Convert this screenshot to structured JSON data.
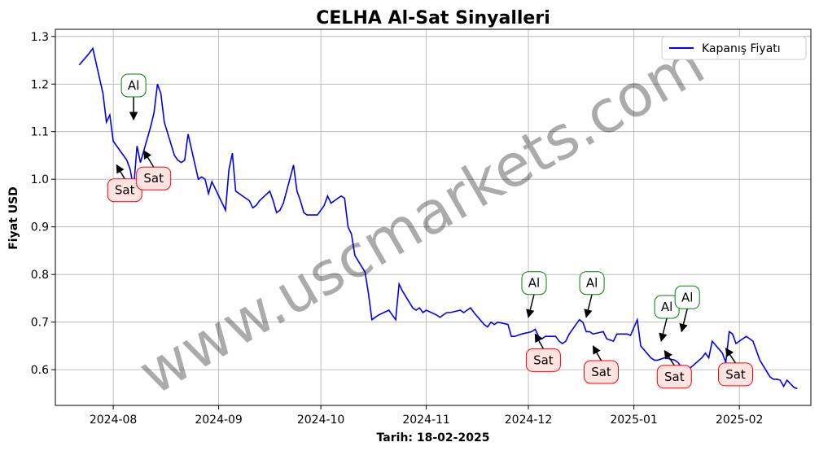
{
  "chart_data": {
    "type": "line",
    "title": "CELHA Al-Sat Sinyalleri",
    "xlabel": "Tarih: 18-02-2025",
    "ylabel": "Fiyat USD",
    "watermark": "www.uscmarkets.com",
    "grid": true,
    "legend_position": "top-right",
    "xlim": [
      "2024-07-15",
      "2025-02-22"
    ],
    "ylim": [
      0.525,
      1.315
    ],
    "x_ticks": [
      {
        "date": "2024-08-01",
        "label": "2024-08"
      },
      {
        "date": "2024-09-01",
        "label": "2024-09"
      },
      {
        "date": "2024-10-01",
        "label": "2024-10"
      },
      {
        "date": "2024-11-01",
        "label": "2024-11"
      },
      {
        "date": "2024-12-01",
        "label": "2024-12"
      },
      {
        "date": "2025-01-01",
        "label": "2025-01"
      },
      {
        "date": "2025-02-01",
        "label": "2025-02"
      }
    ],
    "y_ticks": [
      0.6,
      0.7,
      0.8,
      0.9,
      1.0,
      1.1,
      1.2,
      1.3
    ],
    "y_tick_labels": [
      "0.6",
      "0.7",
      "0.8",
      "0.9",
      "1.0",
      "1.1",
      "1.2",
      "1.3"
    ],
    "series": [
      {
        "name": "Kapanış Fiyatı",
        "color": "#0000ee",
        "points": [
          [
            "2024-07-22",
            1.24
          ],
          [
            "2024-07-25",
            1.265
          ],
          [
            "2024-07-26",
            1.275
          ],
          [
            "2024-07-29",
            1.18
          ],
          [
            "2024-07-30",
            1.12
          ],
          [
            "2024-07-31",
            1.135
          ],
          [
            "2024-08-01",
            1.08
          ],
          [
            "2024-08-05",
            1.04
          ],
          [
            "2024-08-06",
            1.02
          ],
          [
            "2024-08-07",
            0.98
          ],
          [
            "2024-08-08",
            1.07
          ],
          [
            "2024-08-09",
            1.035
          ],
          [
            "2024-08-12",
            1.11
          ],
          [
            "2024-08-13",
            1.14
          ],
          [
            "2024-08-14",
            1.2
          ],
          [
            "2024-08-15",
            1.18
          ],
          [
            "2024-08-16",
            1.12
          ],
          [
            "2024-08-19",
            1.05
          ],
          [
            "2024-08-20",
            1.04
          ],
          [
            "2024-08-21",
            1.035
          ],
          [
            "2024-08-22",
            1.04
          ],
          [
            "2024-08-23",
            1.095
          ],
          [
            "2024-08-26",
            1.0
          ],
          [
            "2024-08-27",
            1.005
          ],
          [
            "2024-08-28",
            1.0
          ],
          [
            "2024-08-29",
            0.97
          ],
          [
            "2024-08-30",
            0.995
          ],
          [
            "2024-09-03",
            0.935
          ],
          [
            "2024-09-04",
            1.02
          ],
          [
            "2024-09-05",
            1.055
          ],
          [
            "2024-09-06",
            0.975
          ],
          [
            "2024-09-09",
            0.96
          ],
          [
            "2024-09-10",
            0.955
          ],
          [
            "2024-09-11",
            0.94
          ],
          [
            "2024-09-12",
            0.945
          ],
          [
            "2024-09-13",
            0.955
          ],
          [
            "2024-09-16",
            0.975
          ],
          [
            "2024-09-17",
            0.955
          ],
          [
            "2024-09-18",
            0.93
          ],
          [
            "2024-09-19",
            0.935
          ],
          [
            "2024-09-20",
            0.95
          ],
          [
            "2024-09-23",
            1.03
          ],
          [
            "2024-09-24",
            0.975
          ],
          [
            "2024-09-25",
            0.955
          ],
          [
            "2024-09-26",
            0.93
          ],
          [
            "2024-09-27",
            0.925
          ],
          [
            "2024-09-30",
            0.925
          ],
          [
            "2024-10-01",
            0.935
          ],
          [
            "2024-10-02",
            0.945
          ],
          [
            "2024-10-03",
            0.965
          ],
          [
            "2024-10-04",
            0.95
          ],
          [
            "2024-10-07",
            0.965
          ],
          [
            "2024-10-08",
            0.96
          ],
          [
            "2024-10-09",
            0.9
          ],
          [
            "2024-10-10",
            0.885
          ],
          [
            "2024-10-11",
            0.84
          ],
          [
            "2024-10-14",
            0.805
          ],
          [
            "2024-10-15",
            0.76
          ],
          [
            "2024-10-16",
            0.705
          ],
          [
            "2024-10-17",
            0.71
          ],
          [
            "2024-10-18",
            0.715
          ],
          [
            "2024-10-21",
            0.725
          ],
          [
            "2024-10-22",
            0.715
          ],
          [
            "2024-10-23",
            0.705
          ],
          [
            "2024-10-24",
            0.78
          ],
          [
            "2024-10-25",
            0.765
          ],
          [
            "2024-10-28",
            0.73
          ],
          [
            "2024-10-29",
            0.725
          ],
          [
            "2024-10-30",
            0.73
          ],
          [
            "2024-10-31",
            0.72
          ],
          [
            "2024-11-01",
            0.725
          ],
          [
            "2024-11-04",
            0.715
          ],
          [
            "2024-11-05",
            0.71
          ],
          [
            "2024-11-06",
            0.715
          ],
          [
            "2024-11-07",
            0.72
          ],
          [
            "2024-11-08",
            0.72
          ],
          [
            "2024-11-11",
            0.725
          ],
          [
            "2024-11-12",
            0.72
          ],
          [
            "2024-11-13",
            0.725
          ],
          [
            "2024-11-14",
            0.73
          ],
          [
            "2024-11-15",
            0.72
          ],
          [
            "2024-11-18",
            0.695
          ],
          [
            "2024-11-19",
            0.69
          ],
          [
            "2024-11-20",
            0.7
          ],
          [
            "2024-11-21",
            0.695
          ],
          [
            "2024-11-22",
            0.7
          ],
          [
            "2024-11-25",
            0.695
          ],
          [
            "2024-11-26",
            0.67
          ],
          [
            "2024-11-27",
            0.67
          ],
          [
            "2024-11-29",
            0.675
          ],
          [
            "2024-12-02",
            0.68
          ],
          [
            "2024-12-03",
            0.685
          ],
          [
            "2024-12-04",
            0.67
          ],
          [
            "2024-12-05",
            0.665
          ],
          [
            "2024-12-06",
            0.67
          ],
          [
            "2024-12-09",
            0.67
          ],
          [
            "2024-12-10",
            0.66
          ],
          [
            "2024-12-11",
            0.655
          ],
          [
            "2024-12-12",
            0.66
          ],
          [
            "2024-12-13",
            0.675
          ],
          [
            "2024-12-16",
            0.705
          ],
          [
            "2024-12-17",
            0.7
          ],
          [
            "2024-12-18",
            0.68
          ],
          [
            "2024-12-19",
            0.68
          ],
          [
            "2024-12-20",
            0.675
          ],
          [
            "2024-12-23",
            0.68
          ],
          [
            "2024-12-24",
            0.665
          ],
          [
            "2024-12-26",
            0.66
          ],
          [
            "2024-12-27",
            0.675
          ],
          [
            "2024-12-30",
            0.675
          ],
          [
            "2024-12-31",
            0.672
          ],
          [
            "2025-01-02",
            0.705
          ],
          [
            "2025-01-03",
            0.65
          ],
          [
            "2025-01-06",
            0.625
          ],
          [
            "2025-01-07",
            0.62
          ],
          [
            "2025-01-08",
            0.62
          ],
          [
            "2025-01-10",
            0.625
          ],
          [
            "2025-01-13",
            0.62
          ],
          [
            "2025-01-14",
            0.615
          ],
          [
            "2025-01-15",
            0.605
          ],
          [
            "2025-01-16",
            0.6
          ],
          [
            "2025-01-17",
            0.6
          ],
          [
            "2025-01-21",
            0.625
          ],
          [
            "2025-01-22",
            0.635
          ],
          [
            "2025-01-23",
            0.625
          ],
          [
            "2025-01-24",
            0.66
          ],
          [
            "2025-01-27",
            0.635
          ],
          [
            "2025-01-28",
            0.615
          ],
          [
            "2025-01-29",
            0.68
          ],
          [
            "2025-01-30",
            0.675
          ],
          [
            "2025-01-31",
            0.655
          ],
          [
            "2025-02-03",
            0.67
          ],
          [
            "2025-02-04",
            0.665
          ],
          [
            "2025-02-05",
            0.66
          ],
          [
            "2025-02-06",
            0.64
          ],
          [
            "2025-02-07",
            0.62
          ],
          [
            "2025-02-10",
            0.585
          ],
          [
            "2025-02-11",
            0.58
          ],
          [
            "2025-02-12",
            0.58
          ],
          [
            "2025-02-13",
            0.578
          ],
          [
            "2025-02-14",
            0.565
          ],
          [
            "2025-02-15",
            0.578
          ],
          [
            "2025-02-17",
            0.563
          ],
          [
            "2025-02-18",
            0.56
          ]
        ]
      }
    ],
    "annotations": [
      {
        "text": "Al",
        "kind": "buy",
        "date": "2024-08-07",
        "value": 1.12,
        "dx": 0,
        "dy": -45
      },
      {
        "text": "Sat",
        "kind": "sell",
        "date": "2024-08-02",
        "value": 1.035,
        "dx": 10,
        "dy": 34
      },
      {
        "text": "Sat",
        "kind": "sell",
        "date": "2024-08-10",
        "value": 1.065,
        "dx": 12,
        "dy": 37
      },
      {
        "text": "Al",
        "kind": "buy",
        "date": "2024-12-01",
        "value": 0.705,
        "dx": 7,
        "dy": -45
      },
      {
        "text": "Sat",
        "kind": "sell",
        "date": "2024-12-03",
        "value": 0.68,
        "dx": 10,
        "dy": 35
      },
      {
        "text": "Al",
        "kind": "buy",
        "date": "2024-12-18",
        "value": 0.705,
        "dx": 7,
        "dy": -45
      },
      {
        "text": "Sat",
        "kind": "sell",
        "date": "2024-12-20",
        "value": 0.655,
        "dx": 10,
        "dy": 35
      },
      {
        "text": "Al",
        "kind": "buy",
        "date": "2025-01-09",
        "value": 0.655,
        "dx": 7,
        "dy": -45
      },
      {
        "text": "Sat",
        "kind": "sell",
        "date": "2025-01-10",
        "value": 0.645,
        "dx": 12,
        "dy": 35
      },
      {
        "text": "Al",
        "kind": "buy",
        "date": "2025-01-15",
        "value": 0.675,
        "dx": 7,
        "dy": -45
      },
      {
        "text": "Sat",
        "kind": "sell",
        "date": "2025-01-28",
        "value": 0.65,
        "dx": 12,
        "dy": 35
      }
    ]
  }
}
